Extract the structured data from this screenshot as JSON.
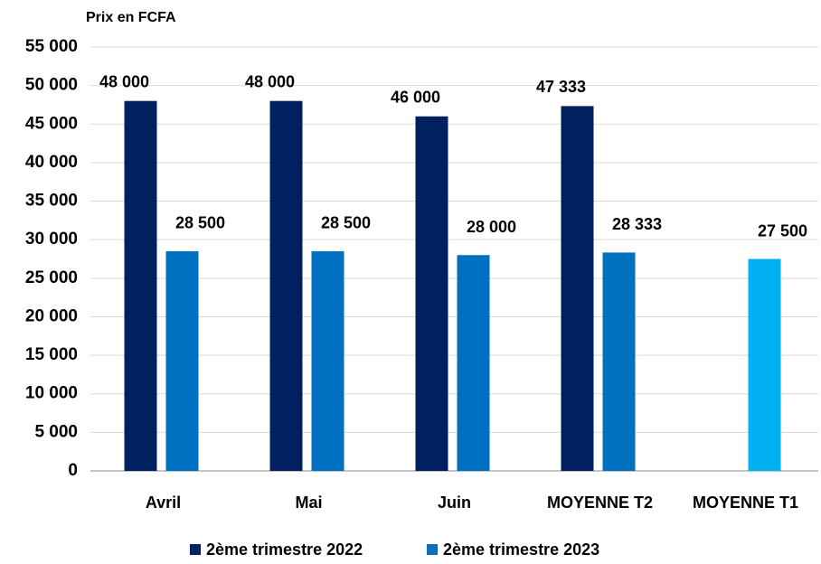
{
  "chart_data": {
    "type": "bar",
    "ylabel": "Prix en FCFA",
    "categories": [
      "Avril",
      "Mai",
      "Juin",
      "MOYENNE T2",
      "MOYENNE T1"
    ],
    "series": [
      {
        "name": "2ème trimestre 2022",
        "color": "#002060",
        "values": [
          48000,
          48000,
          46000,
          47333,
          null
        ],
        "value_labels": [
          "48 000",
          "48 000",
          "46 000",
          "47 333",
          null
        ]
      },
      {
        "name": "2ème trimestre 2023",
        "color": "#0070c0",
        "colors": [
          "#0070c0",
          "#0070c0",
          "#0070c0",
          "#0070c0",
          "#00b0f0"
        ],
        "values": [
          28500,
          28500,
          28000,
          28333,
          27500
        ],
        "value_labels": [
          "28 500",
          "28 500",
          "28 000",
          "28 333",
          "27 500"
        ]
      }
    ],
    "ylim": [
      0,
      55000
    ],
    "yticks": [
      0,
      {
        "value": 5000,
        "label": "5 000"
      },
      {
        "value": 10000,
        "label": "10 000"
      },
      {
        "value": 15000,
        "label": "15 000"
      },
      {
        "value": 20000,
        "label": "20 000"
      },
      {
        "value": 25000,
        "label": "25 000"
      },
      {
        "value": 30000,
        "label": "30 000"
      },
      {
        "value": 35000,
        "label": "35 000"
      },
      {
        "value": 40000,
        "label": "40 000"
      },
      {
        "value": 45000,
        "label": "45 000"
      },
      {
        "value": 50000,
        "label": "50 000"
      },
      {
        "value": 55000,
        "label": "55 000"
      }
    ],
    "grid": true,
    "legend": "bottom"
  }
}
